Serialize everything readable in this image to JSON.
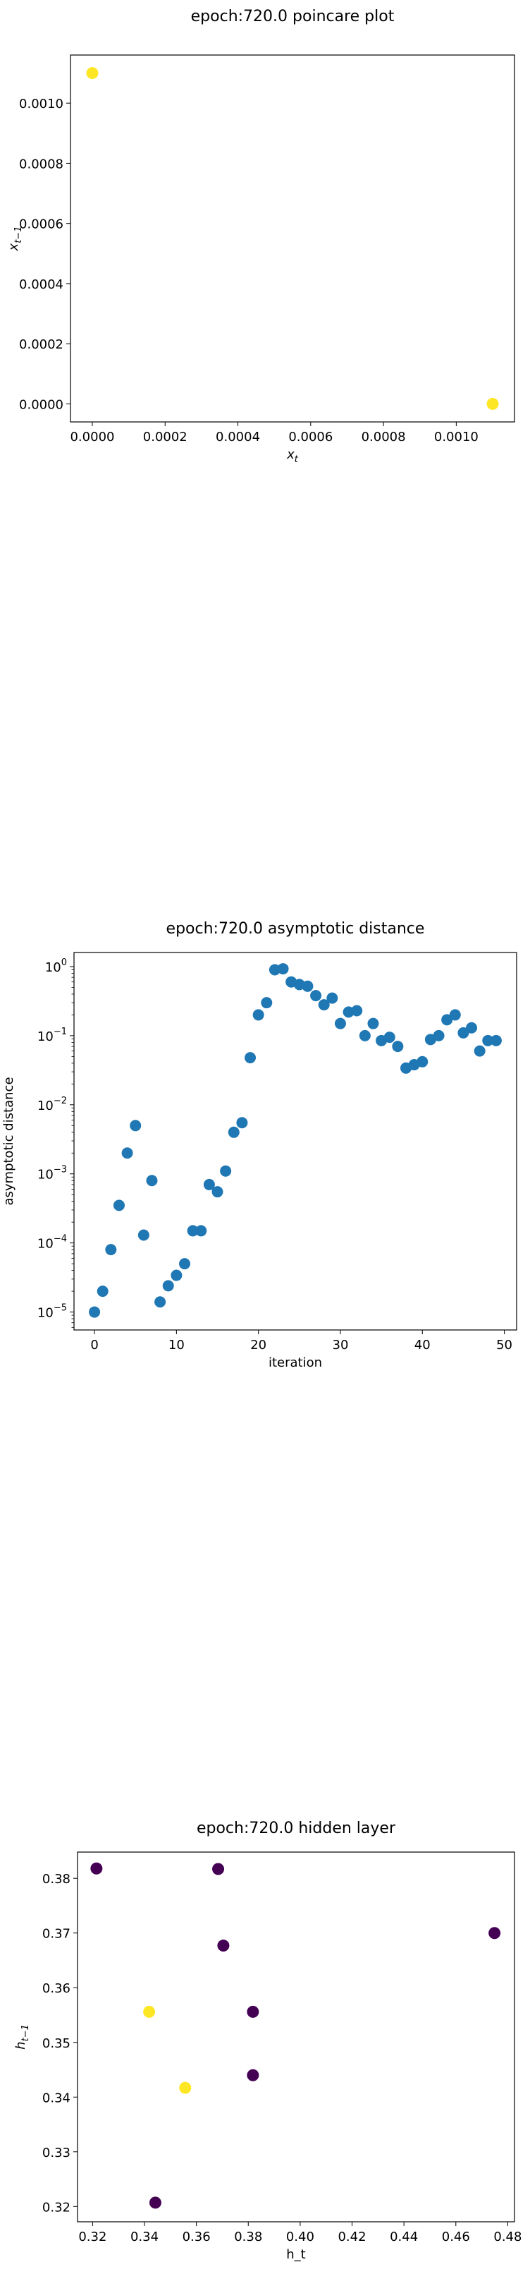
{
  "chart_data": [
    {
      "type": "scatter",
      "title": "epoch:720.0 poincare plot",
      "xlabel": "x_t",
      "ylabel": "x_{t-1}",
      "xlim": [
        -6e-05,
        0.00116
      ],
      "ylim": [
        -6e-05,
        0.00116
      ],
      "xticks": [
        0,
        0.0002,
        0.0004,
        0.0006,
        0.0008,
        0.001
      ],
      "xtick_labels": [
        "0.0000",
        "0.0002",
        "0.0004",
        "0.0006",
        "0.0008",
        "0.0010"
      ],
      "yticks": [
        0,
        0.0002,
        0.0004,
        0.0006,
        0.0008,
        0.001
      ],
      "ytick_labels": [
        "0.0000",
        "0.0002",
        "0.0004",
        "0.0006",
        "0.0008",
        "0.0010"
      ],
      "grid": false,
      "points": [
        {
          "x": 0.0,
          "y": 0.0011,
          "color": "#fde725"
        },
        {
          "x": 0.0011,
          "y": 0.0,
          "color": "#fde725"
        }
      ]
    },
    {
      "type": "scatter",
      "title": "epoch:720.0 asymptotic distance",
      "xlabel": "iteration",
      "ylabel": "asymptotic distance",
      "yscale": "log",
      "xlim": [
        -2.5,
        51.5
      ],
      "ylim": [
        5.5e-06,
        1.6
      ],
      "xticks": [
        0,
        10,
        20,
        30,
        40,
        50
      ],
      "xtick_labels": [
        "0",
        "10",
        "20",
        "30",
        "40",
        "50"
      ],
      "yticks": [
        1e-05,
        0.0001,
        0.001,
        0.01,
        0.1,
        1
      ],
      "ytick_labels": [
        {
          "base": "10",
          "exp": "−5"
        },
        {
          "base": "10",
          "exp": "−4"
        },
        {
          "base": "10",
          "exp": "−3"
        },
        {
          "base": "10",
          "exp": "−2"
        },
        {
          "base": "10",
          "exp": "−1"
        },
        {
          "base": "10",
          "exp": "0"
        }
      ],
      "grid": false,
      "color": "#1f77b4",
      "x": [
        0,
        1,
        2,
        3,
        4,
        5,
        6,
        7,
        8,
        9,
        10,
        11,
        12,
        13,
        14,
        15,
        16,
        17,
        18,
        19,
        20,
        21,
        22,
        23,
        24,
        25,
        26,
        27,
        28,
        29,
        30,
        31,
        32,
        33,
        34,
        35,
        36,
        37,
        38,
        39,
        40,
        41,
        42,
        43,
        44,
        45,
        46,
        47,
        48,
        49
      ],
      "y": [
        1e-05,
        2e-05,
        8e-05,
        0.00035,
        0.002,
        0.005,
        0.00013,
        0.0008,
        1.4e-05,
        2.4e-05,
        3.4e-05,
        5e-05,
        0.00015,
        0.00015,
        0.0007,
        0.00055,
        0.0011,
        0.004,
        0.0055,
        0.048,
        0.2,
        0.3,
        0.9,
        0.93,
        0.6,
        0.55,
        0.52,
        0.38,
        0.28,
        0.35,
        0.15,
        0.22,
        0.23,
        0.1,
        0.15,
        0.085,
        0.095,
        0.07,
        0.034,
        0.038,
        0.042,
        0.088,
        0.1,
        0.17,
        0.2,
        0.11,
        0.13,
        0.06,
        0.085,
        0.085
      ]
    },
    {
      "type": "scatter",
      "title": "epoch:720.0 hidden layer",
      "xlabel": "h_t",
      "ylabel": "h_{t-1}",
      "xlim": [
        0.3142,
        0.4826
      ],
      "ylim": [
        0.3172,
        0.3848
      ],
      "xticks": [
        0.32,
        0.34,
        0.36,
        0.38,
        0.4,
        0.42,
        0.44,
        0.46,
        0.48
      ],
      "xtick_labels": [
        "0.32",
        "0.34",
        "0.36",
        "0.38",
        "0.40",
        "0.42",
        "0.44",
        "0.46",
        "0.48"
      ],
      "yticks": [
        0.32,
        0.33,
        0.34,
        0.35,
        0.36,
        0.37,
        0.38
      ],
      "ytick_labels": [
        "0.32",
        "0.33",
        "0.34",
        "0.35",
        "0.36",
        "0.37",
        "0.38"
      ],
      "grid": false,
      "points": [
        {
          "x": 0.3215,
          "y": 0.3818,
          "color": "#440154"
        },
        {
          "x": 0.3684,
          "y": 0.3817,
          "color": "#440154"
        },
        {
          "x": 0.3704,
          "y": 0.3677,
          "color": "#440154"
        },
        {
          "x": 0.4749,
          "y": 0.37,
          "color": "#440154"
        },
        {
          "x": 0.3418,
          "y": 0.3556,
          "color": "#fde725"
        },
        {
          "x": 0.3818,
          "y": 0.3556,
          "color": "#440154"
        },
        {
          "x": 0.3557,
          "y": 0.3417,
          "color": "#fde725"
        },
        {
          "x": 0.3818,
          "y": 0.344,
          "color": "#440154"
        },
        {
          "x": 0.3442,
          "y": 0.3207,
          "color": "#440154"
        }
      ]
    }
  ]
}
